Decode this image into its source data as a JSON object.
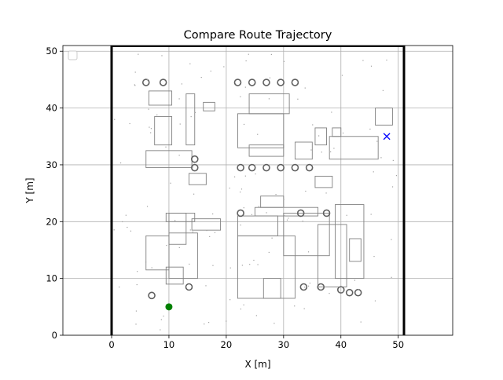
{
  "chart_data": {
    "type": "scatter",
    "title": "Compare Route Trajectory",
    "xlabel": "X [m]",
    "ylabel": "Y [m]",
    "xlim": [
      -8.5,
      59.5
    ],
    "ylim": [
      0,
      51
    ],
    "xticks": [
      0,
      10,
      20,
      30,
      40,
      50
    ],
    "yticks": [
      0,
      10,
      20,
      30,
      40,
      50
    ],
    "grid": true,
    "legend": "top-left, empty",
    "map_background": "grayscale occupancy map of building outlines",
    "boundary_lines_x": [
      0,
      51
    ],
    "start_point": {
      "x": 10,
      "y": 5,
      "marker": "circle",
      "color": "#008000"
    },
    "goal_point": {
      "x": 48,
      "y": 35,
      "marker": "x",
      "color": "#0000ff"
    }
  }
}
